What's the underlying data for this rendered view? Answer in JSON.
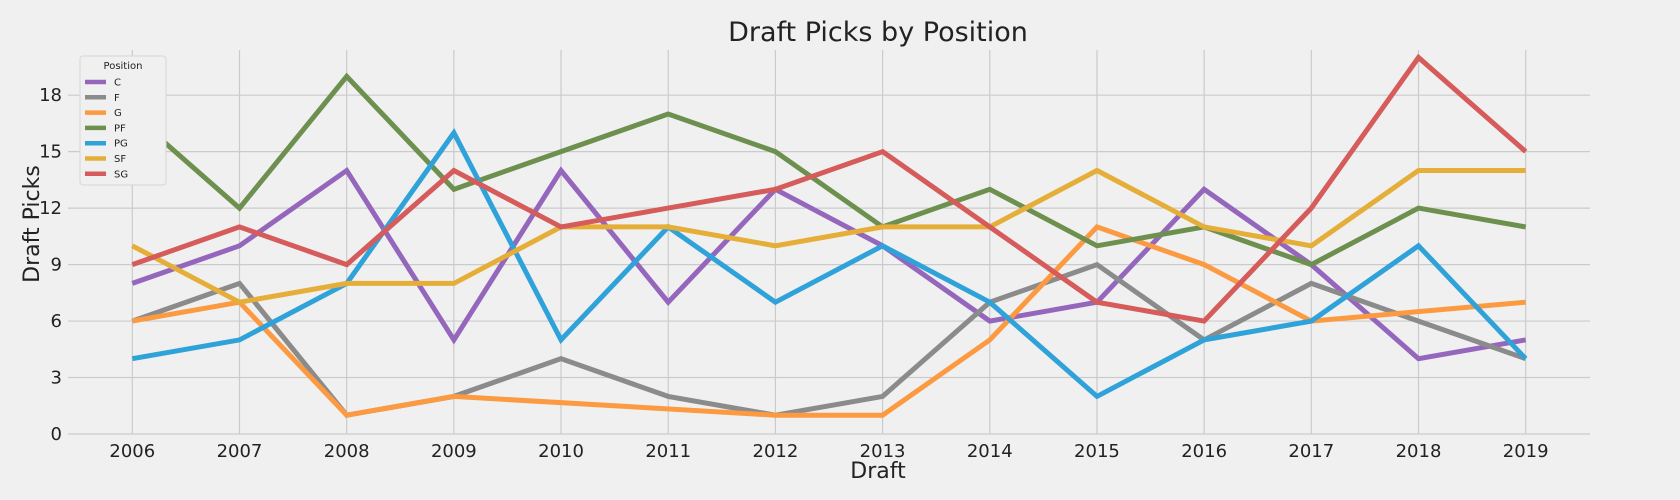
{
  "chart_data": {
    "type": "line",
    "title": "Draft Picks by Position",
    "xlabel": "Draft",
    "ylabel": "Draft Picks",
    "x": [
      2006,
      2007,
      2008,
      2009,
      2010,
      2011,
      2012,
      2013,
      2014,
      2015,
      2016,
      2017,
      2018,
      2019
    ],
    "xlim": [
      2005.4,
      2019.6
    ],
    "ylim": [
      0,
      20.4
    ],
    "yticks": [
      0,
      3,
      6,
      9,
      12,
      15,
      18
    ],
    "grid": true,
    "legend": {
      "title": "Position",
      "placement": "top-left"
    },
    "series": [
      {
        "name": "C",
        "color": "#9467bd",
        "values": [
          8,
          10,
          14,
          5,
          14,
          7,
          13,
          10,
          6,
          7,
          13,
          9,
          4,
          5
        ]
      },
      {
        "name": "F",
        "color": "#8b8b8b",
        "values": [
          6,
          8,
          1,
          2,
          4,
          2,
          1,
          2,
          7,
          9,
          5,
          8,
          6,
          4
        ]
      },
      {
        "name": "G",
        "color": "#fc9a42",
        "values": [
          6,
          7,
          1,
          2,
          null,
          null,
          1,
          1,
          5,
          11,
          9,
          6,
          null,
          7
        ]
      },
      {
        "name": "PF",
        "color": "#6d904f",
        "values": [
          17,
          12,
          19,
          13,
          15,
          17,
          15,
          11,
          13,
          10,
          11,
          9,
          12,
          11
        ]
      },
      {
        "name": "PG",
        "color": "#30a2da",
        "values": [
          4,
          5,
          8,
          16,
          5,
          11,
          7,
          10,
          7,
          2,
          5,
          6,
          10,
          4
        ]
      },
      {
        "name": "SF",
        "color": "#e5ae38",
        "values": [
          10,
          7,
          8,
          8,
          11,
          11,
          10,
          11,
          11,
          14,
          11,
          10,
          14,
          14
        ]
      },
      {
        "name": "SG",
        "color": "#d65b5b",
        "values": [
          9,
          11,
          9,
          14,
          11,
          12,
          13,
          15,
          11,
          7,
          6,
          12,
          20,
          15
        ]
      }
    ]
  }
}
